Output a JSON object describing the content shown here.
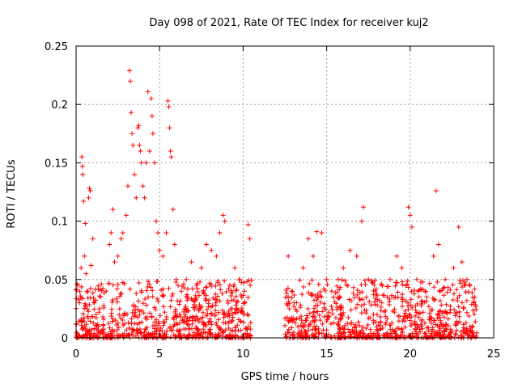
{
  "chart_data": {
    "type": "scatter",
    "title": "Day 098 of 2021, Rate Of TEC Index for receiver kuj2",
    "xlabel": "GPS time / hours",
    "ylabel": "ROTI / TECUs",
    "xlim": [
      0,
      25
    ],
    "ylim": [
      0,
      0.25
    ],
    "xticks": [
      0,
      5,
      10,
      15,
      20,
      25
    ],
    "yticks": [
      0,
      0.05,
      0.1,
      0.15,
      0.2,
      0.25
    ],
    "xtick_labels": [
      "0",
      "5",
      "10",
      "15",
      "20",
      "25"
    ],
    "ytick_labels": [
      "0",
      "0.05",
      "0.1",
      "0.15",
      "0.2",
      "0.25"
    ],
    "grid": true,
    "marker": "+",
    "series": [
      {
        "name": "ROTI",
        "color": "#ff0000",
        "points": [
          [
            0.1,
            0.045
          ],
          [
            0.2,
            0.03
          ],
          [
            0.3,
            0.06
          ],
          [
            0.35,
            0.155
          ],
          [
            0.38,
            0.147
          ],
          [
            0.4,
            0.14
          ],
          [
            0.45,
            0.117
          ],
          [
            0.5,
            0.07
          ],
          [
            0.55,
            0.098
          ],
          [
            0.6,
            0.055
          ],
          [
            0.7,
            0.04
          ],
          [
            0.75,
            0.12
          ],
          [
            0.8,
            0.128
          ],
          [
            0.85,
            0.126
          ],
          [
            0.9,
            0.062
          ],
          [
            1.0,
            0.085
          ],
          [
            1.1,
            0.03
          ],
          [
            1.2,
            0.02
          ],
          [
            1.4,
            0.025
          ],
          [
            1.6,
            0.018
          ],
          [
            1.8,
            0.04
          ],
          [
            2.0,
            0.08
          ],
          [
            2.1,
            0.09
          ],
          [
            2.2,
            0.11
          ],
          [
            2.3,
            0.065
          ],
          [
            2.5,
            0.07
          ],
          [
            2.7,
            0.085
          ],
          [
            2.8,
            0.09
          ],
          [
            3.0,
            0.105
          ],
          [
            3.1,
            0.13
          ],
          [
            3.2,
            0.229
          ],
          [
            3.25,
            0.22
          ],
          [
            3.3,
            0.193
          ],
          [
            3.35,
            0.175
          ],
          [
            3.4,
            0.165
          ],
          [
            3.5,
            0.14
          ],
          [
            3.6,
            0.12
          ],
          [
            3.7,
            0.18
          ],
          [
            3.75,
            0.182
          ],
          [
            3.8,
            0.165
          ],
          [
            3.85,
            0.16
          ],
          [
            3.9,
            0.15
          ],
          [
            4.0,
            0.13
          ],
          [
            4.1,
            0.12
          ],
          [
            4.2,
            0.15
          ],
          [
            4.3,
            0.211
          ],
          [
            4.4,
            0.16
          ],
          [
            4.5,
            0.205
          ],
          [
            4.55,
            0.19
          ],
          [
            4.6,
            0.175
          ],
          [
            4.7,
            0.15
          ],
          [
            4.8,
            0.1
          ],
          [
            4.9,
            0.09
          ],
          [
            5.0,
            0.075
          ],
          [
            5.2,
            0.07
          ],
          [
            5.4,
            0.09
          ],
          [
            5.5,
            0.203
          ],
          [
            5.55,
            0.198
          ],
          [
            5.6,
            0.18
          ],
          [
            5.65,
            0.16
          ],
          [
            5.7,
            0.155
          ],
          [
            5.8,
            0.11
          ],
          [
            5.9,
            0.08
          ],
          [
            6.0,
            0.05
          ],
          [
            6.3,
            0.04
          ],
          [
            6.6,
            0.05
          ],
          [
            6.9,
            0.065
          ],
          [
            7.2,
            0.045
          ],
          [
            7.5,
            0.06
          ],
          [
            7.8,
            0.08
          ],
          [
            8.1,
            0.075
          ],
          [
            8.4,
            0.07
          ],
          [
            8.6,
            0.09
          ],
          [
            8.8,
            0.105
          ],
          [
            8.9,
            0.1
          ],
          [
            9.2,
            0.045
          ],
          [
            9.5,
            0.06
          ],
          [
            9.8,
            0.05
          ],
          [
            10.1,
            0.03
          ],
          [
            10.3,
            0.097
          ],
          [
            10.4,
            0.085
          ],
          [
            12.7,
            0.07
          ],
          [
            12.9,
            0.04
          ],
          [
            13.2,
            0.03
          ],
          [
            13.6,
            0.06
          ],
          [
            13.9,
            0.085
          ],
          [
            14.2,
            0.07
          ],
          [
            14.4,
            0.091
          ],
          [
            14.7,
            0.09
          ],
          [
            15.0,
            0.05
          ],
          [
            15.3,
            0.04
          ],
          [
            15.7,
            0.05
          ],
          [
            16.0,
            0.06
          ],
          [
            16.4,
            0.075
          ],
          [
            16.8,
            0.07
          ],
          [
            17.1,
            0.1
          ],
          [
            17.2,
            0.112
          ],
          [
            17.5,
            0.05
          ],
          [
            17.9,
            0.04
          ],
          [
            18.3,
            0.03
          ],
          [
            18.8,
            0.05
          ],
          [
            19.2,
            0.07
          ],
          [
            19.5,
            0.06
          ],
          [
            19.9,
            0.112
          ],
          [
            20.0,
            0.105
          ],
          [
            20.1,
            0.095
          ],
          [
            20.4,
            0.05
          ],
          [
            20.9,
            0.04
          ],
          [
            21.4,
            0.07
          ],
          [
            21.55,
            0.126
          ],
          [
            21.7,
            0.08
          ],
          [
            22.1,
            0.05
          ],
          [
            22.6,
            0.06
          ],
          [
            22.9,
            0.095
          ],
          [
            23.1,
            0.065
          ],
          [
            23.4,
            0.05
          ],
          [
            23.8,
            0.03
          ]
        ]
      }
    ],
    "band": {
      "segments": [
        [
          0,
          10.5
        ],
        [
          12.5,
          24
        ]
      ],
      "description": "dense cloud of low ROTI values"
    }
  }
}
